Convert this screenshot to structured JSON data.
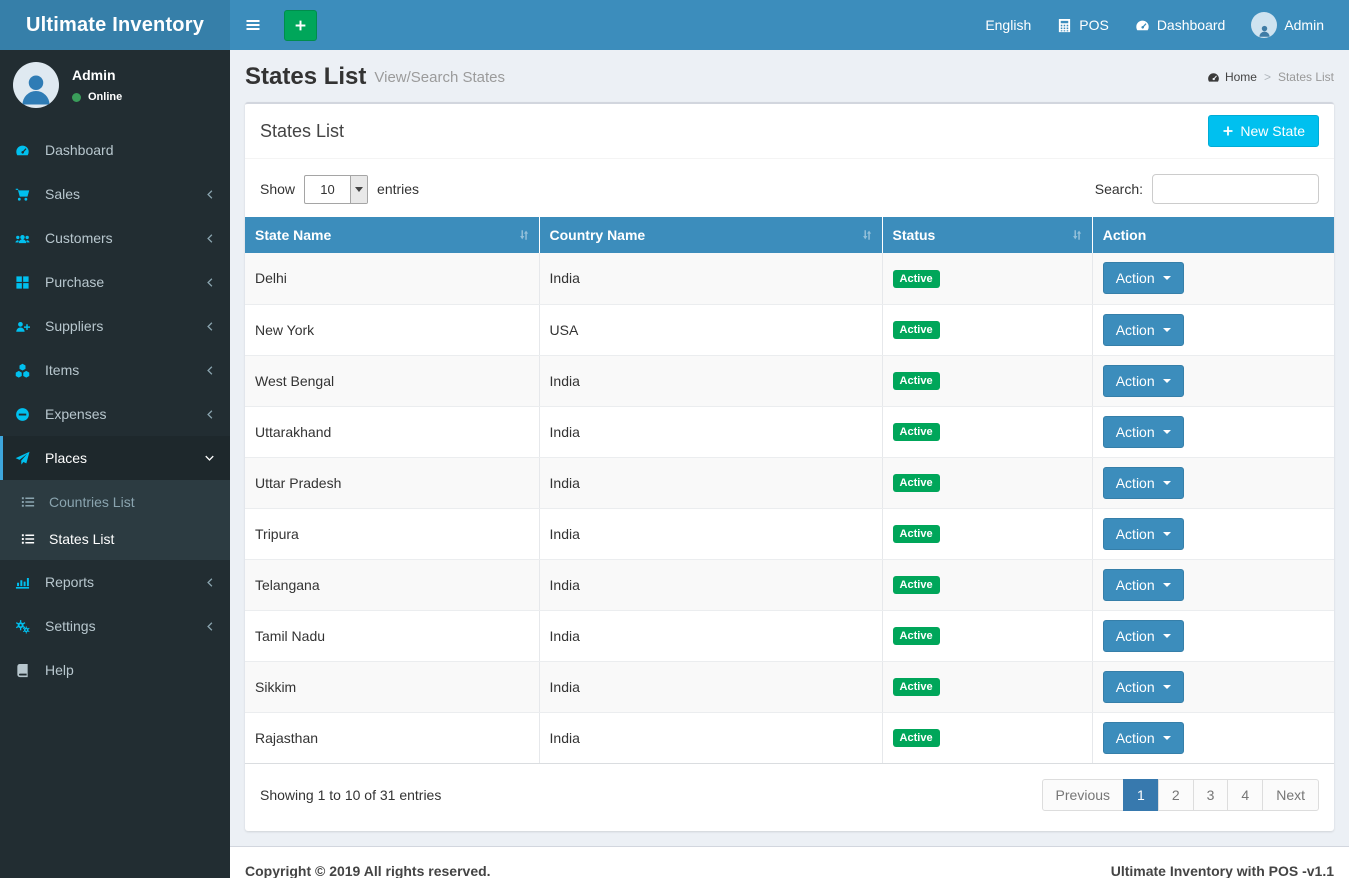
{
  "navbar": {
    "brand": "Ultimate Inventory",
    "right_items": [
      {
        "label": "English",
        "icon": null
      },
      {
        "label": "POS",
        "icon": "calculator-icon"
      },
      {
        "label": "Dashboard",
        "icon": "dashboard-icon"
      },
      {
        "label": "Admin",
        "icon": "avatar"
      }
    ]
  },
  "user_panel": {
    "name": "Admin",
    "status": "Online"
  },
  "sidebar": {
    "items_top": [
      {
        "label": "Dashboard",
        "icon": "dashboard-icon"
      },
      {
        "label": "Sales",
        "icon": "cart-icon",
        "chevron": "chevron-left-icon"
      },
      {
        "label": "Customers",
        "icon": "users-icon",
        "chevron": "chevron-left-icon"
      },
      {
        "label": "Purchase",
        "icon": "grid-icon",
        "chevron": "chevron-left-icon"
      },
      {
        "label": "Suppliers",
        "icon": "user-plus-icon",
        "chevron": "chevron-left-icon"
      },
      {
        "label": "Items",
        "icon": "cubes-icon",
        "chevron": "chevron-left-icon"
      },
      {
        "label": "Expenses",
        "icon": "minus-circle-icon",
        "chevron": "chevron-left-icon"
      },
      {
        "label": "Places",
        "icon": "paper-plane-icon",
        "chevron": "chevron-down-icon",
        "active": true
      }
    ],
    "sub_items": [
      {
        "label": "Countries List",
        "icon": "list-icon"
      },
      {
        "label": "States List",
        "icon": "list-icon",
        "active": true
      }
    ],
    "items_bottom": [
      {
        "label": "Reports",
        "icon": "chart-bar-icon",
        "chevron": "chevron-left-icon"
      },
      {
        "label": "Settings",
        "icon": "gears-icon",
        "chevron": "chevron-left-icon"
      },
      {
        "label": "Help",
        "icon": "book-icon",
        "muted_icon": true
      }
    ]
  },
  "page_header": {
    "title": "States List",
    "subtitle": "View/Search States",
    "breadcrumb": {
      "home": "Home",
      "separator": ">",
      "current": "States List"
    }
  },
  "card": {
    "title": "States List",
    "new_button_label": "New State",
    "show_label": "Show",
    "entries_value": "10",
    "entries_label": "entries",
    "search_label": "Search:",
    "table": {
      "columns": [
        {
          "label": "State Name",
          "sortable": true
        },
        {
          "label": "Country Name",
          "sortable": true
        },
        {
          "label": "Status",
          "sortable": true
        },
        {
          "label": "Action",
          "sortable": false
        }
      ],
      "action_button_label": "Action",
      "rows": [
        {
          "state": "Delhi",
          "country": "India",
          "status": "Active"
        },
        {
          "state": "New York",
          "country": "USA",
          "status": "Active"
        },
        {
          "state": "West Bengal",
          "country": "India",
          "status": "Active"
        },
        {
          "state": "Uttarakhand",
          "country": "India",
          "status": "Active"
        },
        {
          "state": "Uttar Pradesh",
          "country": "India",
          "status": "Active"
        },
        {
          "state": "Tripura",
          "country": "India",
          "status": "Active"
        },
        {
          "state": "Telangana",
          "country": "India",
          "status": "Active"
        },
        {
          "state": "Tamil Nadu",
          "country": "India",
          "status": "Active"
        },
        {
          "state": "Sikkim",
          "country": "India",
          "status": "Active"
        },
        {
          "state": "Rajasthan",
          "country": "India",
          "status": "Active"
        }
      ]
    },
    "summary": "Showing 1 to 10 of 31 entries",
    "pagination": {
      "previous": "Previous",
      "pages": [
        {
          "label": "1",
          "active": true
        },
        {
          "label": "2"
        },
        {
          "label": "3"
        },
        {
          "label": "4"
        }
      ],
      "next": "Next"
    }
  },
  "footer": {
    "left": "Copyright © 2019 All rights reserved.",
    "right": "Ultimate Inventory with POS -v1.1"
  },
  "colors": {
    "navbar_blue": "#3c8dbc",
    "logo_blue": "#367fa9",
    "sidebar_dark": "#222d32",
    "submenu_dark": "#2c3b41",
    "accent_cyan": "#00c0ef",
    "success_green": "#00a65a",
    "content_bg": "#ecf0f5",
    "status_badge_green": "#00a65a"
  }
}
